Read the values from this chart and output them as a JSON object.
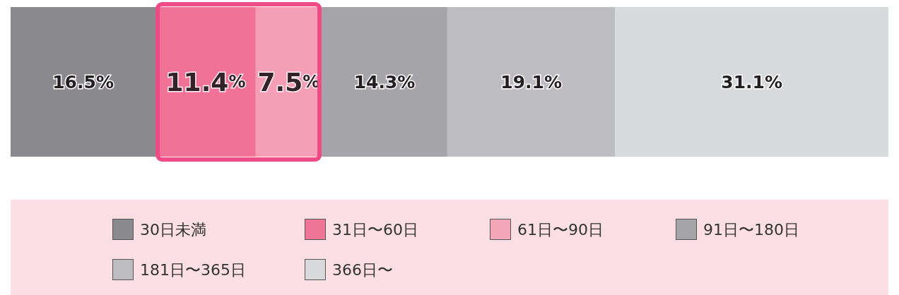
{
  "chart_data": {
    "type": "bar",
    "orientation": "horizontal",
    "stacked": true,
    "categories": [
      null
    ],
    "legend": "bottom",
    "series": [
      {
        "name": "30日未満",
        "color": "#8a8a8e",
        "values": [
          16.5
        ],
        "value_labels": [
          "16.5%"
        ]
      },
      {
        "name": "31日〜60日",
        "color": "#f07698",
        "values": [
          11.4
        ],
        "value_labels": [
          "11.4%"
        ]
      },
      {
        "name": "61日〜90日",
        "color": "#f5a7ba",
        "values": [
          7.5
        ],
        "value_labels": [
          "7.5%"
        ]
      },
      {
        "name": "91日〜180日",
        "color": "#a5a5a9",
        "values": [
          14.3
        ],
        "value_labels": [
          "14.3%"
        ]
      },
      {
        "name": "181日〜365日",
        "color": "#bdbdc1",
        "values": [
          19.1
        ],
        "value_labels": [
          "19.1%"
        ]
      },
      {
        "name": "366日〜",
        "color": "#d8d9db",
        "values": [
          31.1
        ],
        "value_labels": [
          "31.1%"
        ]
      }
    ],
    "bands": [
      {
        "axis": "x",
        "from": 16.5,
        "to": 35.4,
        "color": "#ee4a84"
      }
    ]
  }
}
